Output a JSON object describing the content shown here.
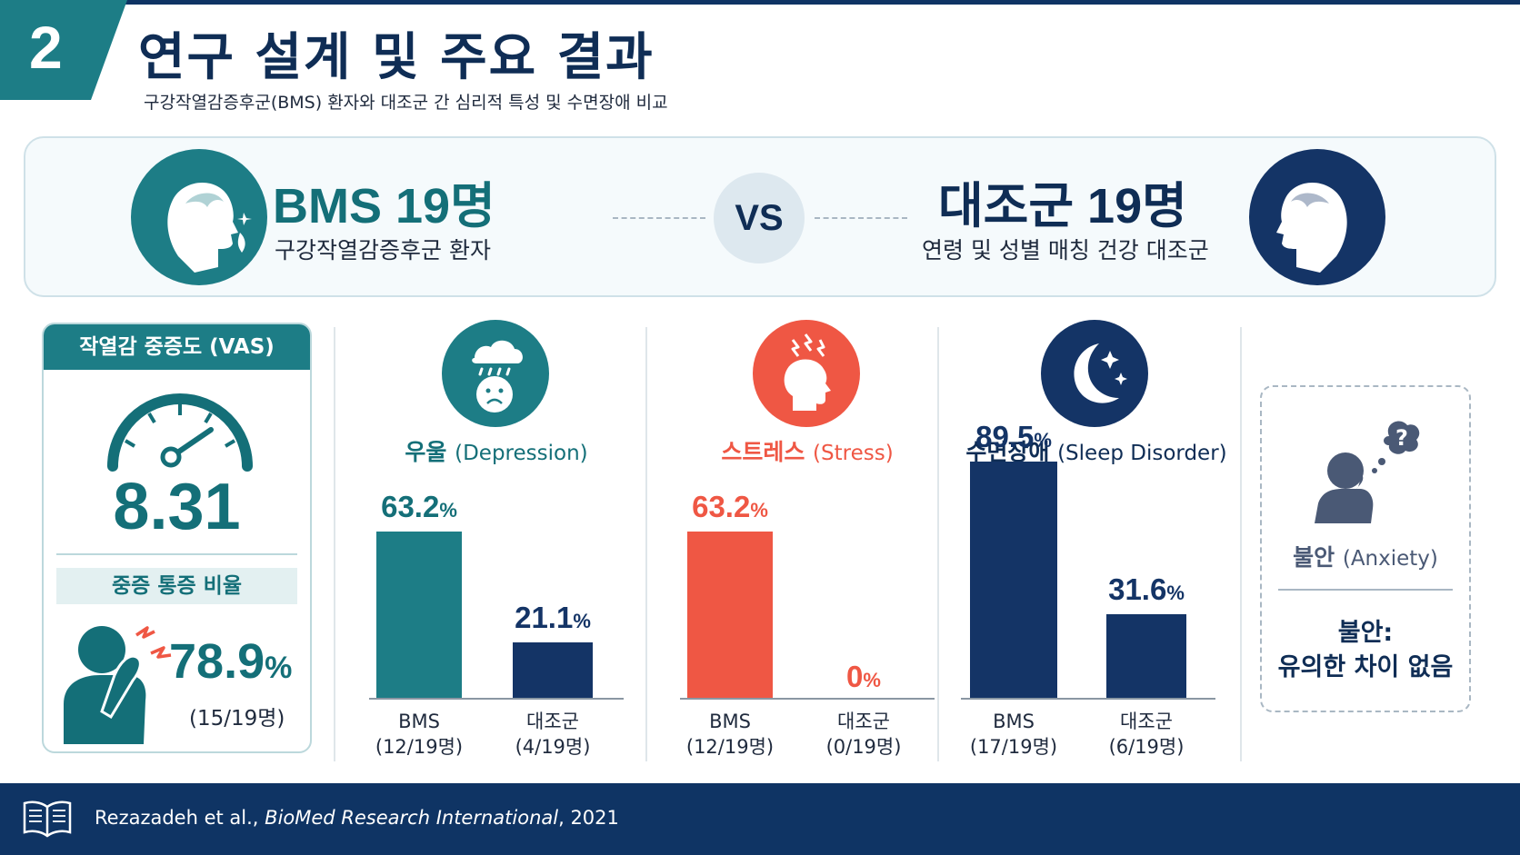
{
  "header": {
    "section_number": "2",
    "title": "연구 설계 및 주요 결과",
    "subtitle": "구강작열감증후군(BMS) 환자와 대조군 간 심리적 특성 및 수면장애 비교"
  },
  "comparison": {
    "bms": {
      "name": "BMS 19명",
      "desc": "구강작열감증후군 환자"
    },
    "vs_label": "VS",
    "control": {
      "name": "대조군  19명",
      "desc": "연령 및 성별 매칭 건강 대조군"
    }
  },
  "vas_card": {
    "title": "작열감 중증도 (VAS)",
    "value": "8.31",
    "sub_title": "중증 통증 비율",
    "pct_value": "78.9",
    "pct_unit": "%",
    "count": "(15/19명)"
  },
  "panels": {
    "depression": {
      "title_ko": "우울",
      "title_en": "(Depression)",
      "bms_value": "63.2",
      "bms_label1": "BMS",
      "bms_label2": "(12/19명)",
      "ctrl_value": "21.1",
      "ctrl_label1": "대조군",
      "ctrl_label2": "(4/19명)",
      "unit": "%"
    },
    "stress": {
      "title_ko": "스트레스",
      "title_en": "(Stress)",
      "bms_value": "63.2",
      "bms_label1": "BMS",
      "bms_label2": "(12/19명)",
      "ctrl_value": "0",
      "ctrl_label1": "대조군",
      "ctrl_label2": "(0/19명)",
      "unit": "%"
    },
    "sleep": {
      "title_ko": "수면장애",
      "title_en": "(Sleep Disorder)",
      "bms_value": "89.5",
      "bms_label1": "BMS",
      "bms_label2": "(17/19명)",
      "ctrl_value": "31.6",
      "ctrl_label1": "대조군",
      "ctrl_label2": "(6/19명)",
      "unit": "%"
    }
  },
  "anxiety": {
    "title_ko": "불안",
    "title_en": "(Anxiety)",
    "result_line1": "불안:",
    "result_line2": "유의한 차이 없음"
  },
  "chart_data": [
    {
      "type": "bar",
      "title": "우울 (Depression)",
      "categories": [
        "BMS",
        "대조군"
      ],
      "values": [
        63.2,
        21.1
      ],
      "ylim": [
        0,
        100
      ]
    },
    {
      "type": "bar",
      "title": "스트레스 (Stress)",
      "categories": [
        "BMS",
        "대조군"
      ],
      "values": [
        63.2,
        0
      ],
      "ylim": [
        0,
        100
      ]
    },
    {
      "type": "bar",
      "title": "수면장애 (Sleep Disorder)",
      "categories": [
        "BMS",
        "대조군"
      ],
      "values": [
        89.5,
        31.6
      ],
      "ylim": [
        0,
        100
      ]
    }
  ],
  "footer": {
    "authors": "Rezazadeh et al., ",
    "journal": "BioMed Research International",
    "year": ", 2021"
  },
  "colors": {
    "teal": "#1d7d86",
    "navy": "#143466",
    "red": "#ef5744",
    "dark_navy": "#0f3464"
  }
}
